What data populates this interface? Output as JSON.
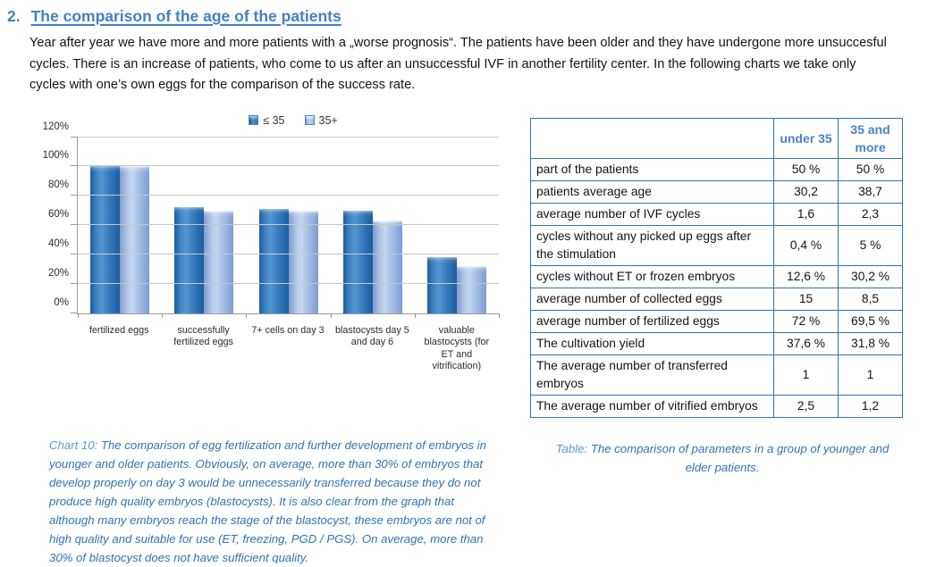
{
  "page": {
    "heading_number": "2.",
    "heading_title": "The comparison of the age of the patients",
    "intro_text": "Year after year we have more and more patients with a „worse prognosis“. The patients have been older and they have undergone more unsuccesful cycles. There is an increase of patients, who come to us after an unsuccessful IVF in another fertility center. In the following charts we take only cycles with one’s own eggs for the comparison of the success rate."
  },
  "chart_data": {
    "type": "bar",
    "categories": [
      "fertilized eggs",
      "successfully fertilized eggs",
      "7+ cells on day 3",
      "blastocysts day 5 and day 6",
      "valuable blastocysts (for ET and vitrification)"
    ],
    "series": [
      {
        "name": "≤ 35",
        "color": "#2e74b8",
        "values": [
          100,
          72,
          71,
          70,
          38
        ]
      },
      {
        "name": "35+",
        "color": "#9ab6e0",
        "values": [
          100,
          69.5,
          70,
          63,
          32
        ]
      }
    ],
    "title": "",
    "xlabel": "",
    "ylabel": "",
    "ylim": [
      0,
      120
    ],
    "yticks": [
      120,
      100,
      80,
      60,
      40,
      20,
      0
    ],
    "ytick_suffix": "%",
    "grid": "horizontal",
    "legend_position": "top-center"
  },
  "chart_caption": {
    "prefix": "Chart 10:",
    "text": " The comparison of egg fertilization and further development of embryos in younger and older patients. Obviously, on average, more than 30% of embryos that develop properly on day 3 would be unnecessarily transferred because they do not produce high quality embryos (blastocysts). It is also clear from the graph that although many embryos reach the stage of the blastocyst, these embryos are not of high quality and suitable for use (ET, freezing, PGD / PGS). On average, more than 30% of blastocyst does not have sufficient quality."
  },
  "table": {
    "col_headers": [
      "under 35",
      "35 and more"
    ],
    "rows": [
      {
        "label": "part of the patients",
        "v1": "50 %",
        "v2": "50 %"
      },
      {
        "label": "patients average age",
        "v1": "30,2",
        "v2": "38,7"
      },
      {
        "label": "average number of IVF cycles",
        "v1": "1,6",
        "v2": "2,3"
      },
      {
        "label": "cycles without any picked up eggs after the stimulation",
        "v1": "0,4 %",
        "v2": "5 %"
      },
      {
        "label": "cycles without ET or frozen embryos",
        "v1": "12,6 %",
        "v2": "30,2 %"
      },
      {
        "label": "average number of collected eggs",
        "v1": "15",
        "v2": "8,5"
      },
      {
        "label": "average number of fertilized eggs",
        "v1": "72 %",
        "v2": "69,5 %"
      },
      {
        "label": "The cultivation yield",
        "v1": "37,6 %",
        "v2": "31,8 %"
      },
      {
        "label": "The average number of transferred embryos",
        "v1": "1",
        "v2": "1"
      },
      {
        "label": "The average number of vitrified embryos",
        "v1": "2,5",
        "v2": "1,2"
      }
    ]
  },
  "table_caption": {
    "prefix": "Table:",
    "text": " The comparison of parameters in a group of younger and elder patients."
  },
  "colors": {
    "heading_blue": "#4181c4",
    "table_border_blue": "#2e74b5",
    "table_header_text": "#4a82c8",
    "caption_prefix_blue": "#5b9bd5",
    "caption_text_blue": "#2e74b5",
    "bar_dark_blue": "#2e74b8",
    "bar_light_blue": "#9ab6e0",
    "gridline_gray": "#c6c6c6"
  }
}
